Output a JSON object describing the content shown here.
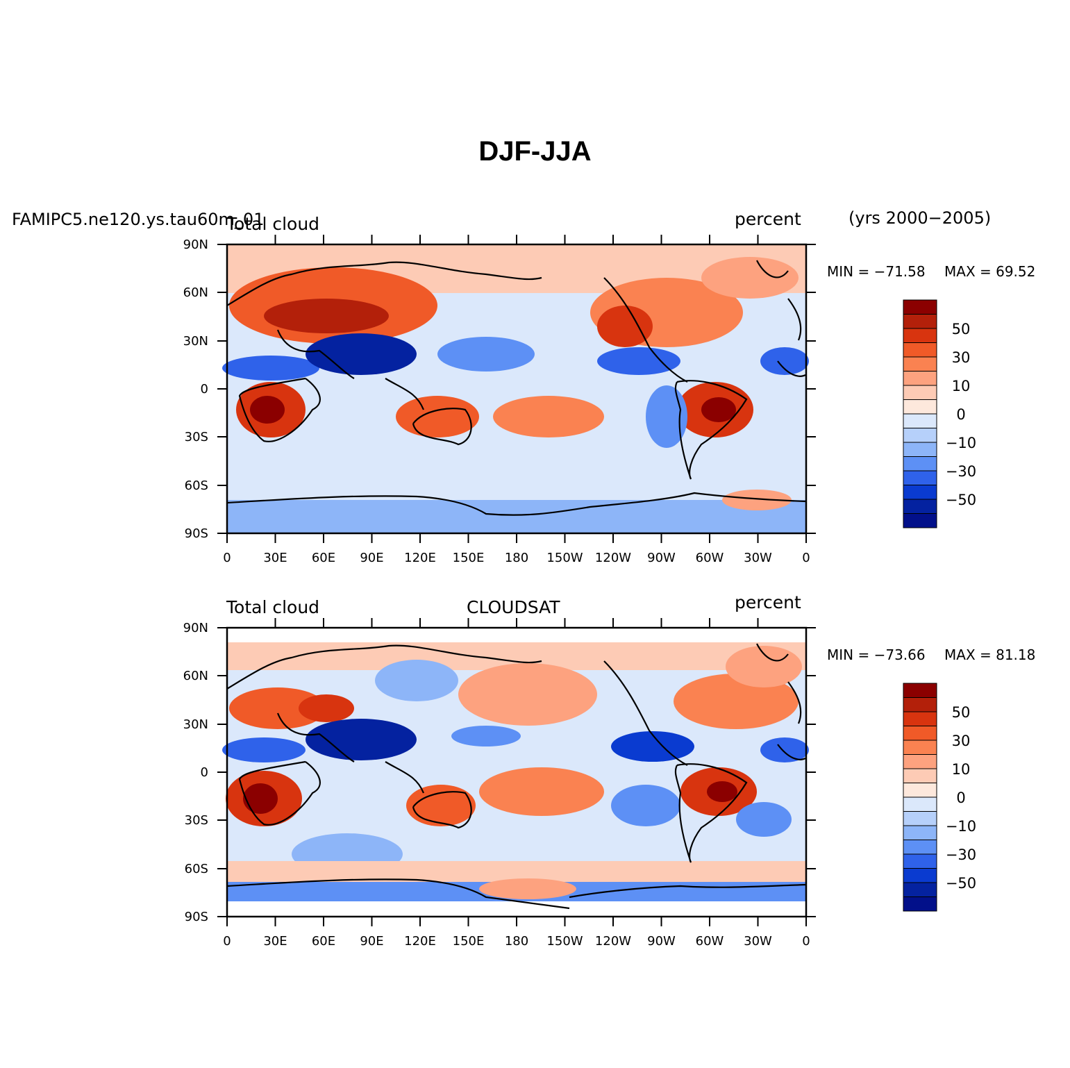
{
  "figure": {
    "title": "DJF-JJA",
    "case_name": "FAMIPC5.ne120.ys.tau60m_01",
    "years": "(yrs 2000−2005)"
  },
  "panels": [
    {
      "id": "model",
      "left_label": "Total cloud",
      "center_label": "",
      "right_label": "percent",
      "min_label": "MIN  =  −71.58",
      "max_label": "MAX  =   69.52"
    },
    {
      "id": "obs",
      "left_label": "Total cloud",
      "center_label": "CLOUDSAT",
      "right_label": "percent",
      "min_label": "MIN  =  −73.66",
      "max_label": "MAX  =   81.18"
    }
  ],
  "axes": {
    "lat_ticks": [
      "90N",
      "60N",
      "30N",
      "0",
      "30S",
      "60S",
      "90S"
    ],
    "lon_ticks": [
      "0",
      "30E",
      "60E",
      "90E",
      "120E",
      "150E",
      "180",
      "150W",
      "120W",
      "90W",
      "60W",
      "30W",
      "0"
    ]
  },
  "colorbar": {
    "labels": [
      "50",
      "30",
      "10",
      "0",
      "−10",
      "−30",
      "−50"
    ],
    "colors": [
      "#8b0000",
      "#b3200a",
      "#d8340f",
      "#f05a28",
      "#fa8251",
      "#fda27f",
      "#fdcbb5",
      "#fde8dc",
      "#dbe8fb",
      "#b6d0fa",
      "#8db5f8",
      "#5d90f5",
      "#2f62ea",
      "#0a3bd0",
      "#0422a0",
      "#02108a"
    ]
  }
}
